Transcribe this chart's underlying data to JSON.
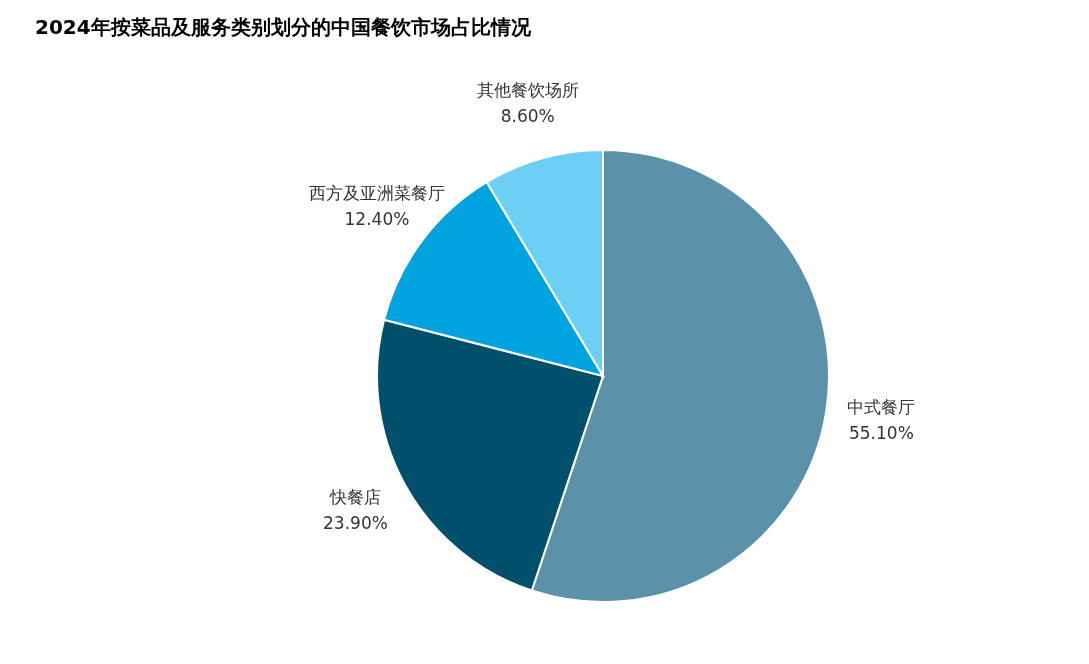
{
  "chart_data": {
    "type": "pie",
    "title": "2024年按菜品及服务类别划分的中国餐饮市场占比情况",
    "categories": [
      "中式餐厅",
      "快餐店",
      "西方及亚洲菜餐厅",
      "其他餐饮场所"
    ],
    "values": [
      55.1,
      23.9,
      12.4,
      8.6
    ],
    "colors": [
      "#5b91a9",
      "#004f6b",
      "#00a3dd",
      "#6dcff6"
    ],
    "value_labels": [
      "55.10%",
      "23.90%",
      "12.40%",
      "8.60%"
    ],
    "legend": false
  }
}
